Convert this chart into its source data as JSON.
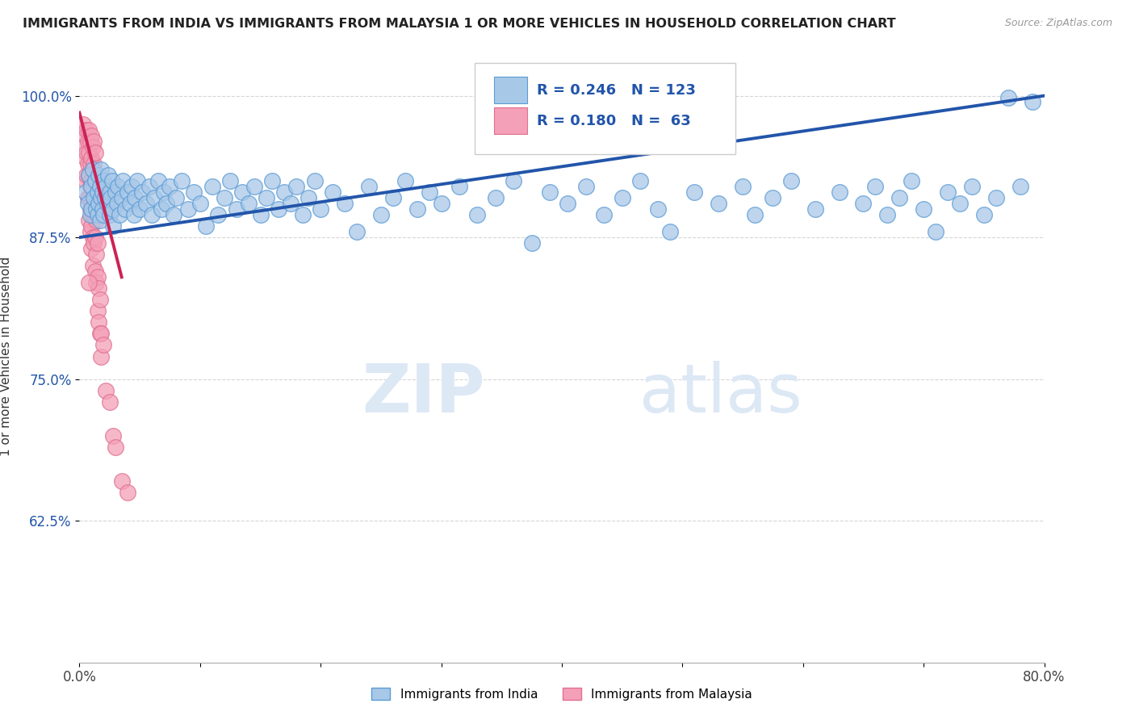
{
  "title": "IMMIGRANTS FROM INDIA VS IMMIGRANTS FROM MALAYSIA 1 OR MORE VEHICLES IN HOUSEHOLD CORRELATION CHART",
  "source": "Source: ZipAtlas.com",
  "ylabel": "1 or more Vehicles in Household",
  "x_min": 0.0,
  "x_max": 0.8,
  "y_min": 0.5,
  "y_max": 1.04,
  "y_ticks": [
    0.625,
    0.75,
    0.875,
    1.0
  ],
  "y_tick_labels": [
    "62.5%",
    "75.0%",
    "87.5%",
    "100.0%"
  ],
  "x_ticks": [
    0.0,
    0.1,
    0.2,
    0.3,
    0.4,
    0.5,
    0.6,
    0.7,
    0.8
  ],
  "x_tick_labels": [
    "0.0%",
    "",
    "",
    "",
    "",
    "",
    "",
    "",
    "80.0%"
  ],
  "india_color": "#A8C8E8",
  "malaysia_color": "#F4A0B8",
  "india_edge_color": "#5B9BD5",
  "malaysia_edge_color": "#E07090",
  "india_trend_color": "#2255AA",
  "malaysia_trend_color": "#CC2255",
  "india_R": 0.246,
  "india_N": 123,
  "malaysia_R": 0.18,
  "malaysia_N": 63,
  "legend_india": "Immigrants from India",
  "legend_malaysia": "Immigrants from Malaysia",
  "watermark_zip": "ZIP",
  "watermark_atlas": "atlas",
  "india_trend_x": [
    0.0,
    0.8
  ],
  "india_trend_y": [
    0.875,
    1.0
  ],
  "malaysia_trend_x": [
    0.0,
    0.035
  ],
  "malaysia_trend_y": [
    0.985,
    0.84
  ],
  "india_scatter": [
    [
      0.005,
      0.915
    ],
    [
      0.007,
      0.905
    ],
    [
      0.008,
      0.93
    ],
    [
      0.009,
      0.895
    ],
    [
      0.01,
      0.92
    ],
    [
      0.01,
      0.9
    ],
    [
      0.011,
      0.935
    ],
    [
      0.012,
      0.91
    ],
    [
      0.013,
      0.925
    ],
    [
      0.014,
      0.9
    ],
    [
      0.015,
      0.915
    ],
    [
      0.015,
      0.895
    ],
    [
      0.016,
      0.93
    ],
    [
      0.016,
      0.905
    ],
    [
      0.017,
      0.92
    ],
    [
      0.017,
      0.89
    ],
    [
      0.018,
      0.91
    ],
    [
      0.018,
      0.935
    ],
    [
      0.019,
      0.9
    ],
    [
      0.019,
      0.915
    ],
    [
      0.02,
      0.925
    ],
    [
      0.02,
      0.895
    ],
    [
      0.021,
      0.91
    ],
    [
      0.022,
      0.92
    ],
    [
      0.023,
      0.905
    ],
    [
      0.024,
      0.93
    ],
    [
      0.025,
      0.915
    ],
    [
      0.025,
      0.895
    ],
    [
      0.026,
      0.91
    ],
    [
      0.027,
      0.925
    ],
    [
      0.028,
      0.9
    ],
    [
      0.028,
      0.885
    ],
    [
      0.03,
      0.915
    ],
    [
      0.031,
      0.905
    ],
    [
      0.032,
      0.92
    ],
    [
      0.033,
      0.895
    ],
    [
      0.035,
      0.91
    ],
    [
      0.036,
      0.925
    ],
    [
      0.038,
      0.9
    ],
    [
      0.04,
      0.915
    ],
    [
      0.042,
      0.905
    ],
    [
      0.043,
      0.92
    ],
    [
      0.045,
      0.895
    ],
    [
      0.046,
      0.91
    ],
    [
      0.048,
      0.925
    ],
    [
      0.05,
      0.9
    ],
    [
      0.052,
      0.915
    ],
    [
      0.055,
      0.905
    ],
    [
      0.058,
      0.92
    ],
    [
      0.06,
      0.895
    ],
    [
      0.062,
      0.91
    ],
    [
      0.065,
      0.925
    ],
    [
      0.068,
      0.9
    ],
    [
      0.07,
      0.915
    ],
    [
      0.072,
      0.905
    ],
    [
      0.075,
      0.92
    ],
    [
      0.078,
      0.895
    ],
    [
      0.08,
      0.91
    ],
    [
      0.085,
      0.925
    ],
    [
      0.09,
      0.9
    ],
    [
      0.095,
      0.915
    ],
    [
      0.1,
      0.905
    ],
    [
      0.105,
      0.885
    ],
    [
      0.11,
      0.92
    ],
    [
      0.115,
      0.895
    ],
    [
      0.12,
      0.91
    ],
    [
      0.125,
      0.925
    ],
    [
      0.13,
      0.9
    ],
    [
      0.135,
      0.915
    ],
    [
      0.14,
      0.905
    ],
    [
      0.145,
      0.92
    ],
    [
      0.15,
      0.895
    ],
    [
      0.155,
      0.91
    ],
    [
      0.16,
      0.925
    ],
    [
      0.165,
      0.9
    ],
    [
      0.17,
      0.915
    ],
    [
      0.175,
      0.905
    ],
    [
      0.18,
      0.92
    ],
    [
      0.185,
      0.895
    ],
    [
      0.19,
      0.91
    ],
    [
      0.195,
      0.925
    ],
    [
      0.2,
      0.9
    ],
    [
      0.21,
      0.915
    ],
    [
      0.22,
      0.905
    ],
    [
      0.23,
      0.88
    ],
    [
      0.24,
      0.92
    ],
    [
      0.25,
      0.895
    ],
    [
      0.26,
      0.91
    ],
    [
      0.27,
      0.925
    ],
    [
      0.28,
      0.9
    ],
    [
      0.29,
      0.915
    ],
    [
      0.3,
      0.905
    ],
    [
      0.315,
      0.92
    ],
    [
      0.33,
      0.895
    ],
    [
      0.345,
      0.91
    ],
    [
      0.36,
      0.925
    ],
    [
      0.375,
      0.87
    ],
    [
      0.39,
      0.915
    ],
    [
      0.405,
      0.905
    ],
    [
      0.42,
      0.92
    ],
    [
      0.435,
      0.895
    ],
    [
      0.45,
      0.91
    ],
    [
      0.465,
      0.925
    ],
    [
      0.48,
      0.9
    ],
    [
      0.49,
      0.88
    ],
    [
      0.51,
      0.915
    ],
    [
      0.53,
      0.905
    ],
    [
      0.55,
      0.92
    ],
    [
      0.56,
      0.895
    ],
    [
      0.575,
      0.91
    ],
    [
      0.59,
      0.925
    ],
    [
      0.61,
      0.9
    ],
    [
      0.63,
      0.915
    ],
    [
      0.65,
      0.905
    ],
    [
      0.66,
      0.92
    ],
    [
      0.67,
      0.895
    ],
    [
      0.68,
      0.91
    ],
    [
      0.69,
      0.925
    ],
    [
      0.7,
      0.9
    ],
    [
      0.71,
      0.88
    ],
    [
      0.72,
      0.915
    ],
    [
      0.73,
      0.905
    ],
    [
      0.74,
      0.92
    ],
    [
      0.75,
      0.895
    ],
    [
      0.76,
      0.91
    ],
    [
      0.77,
      0.998
    ],
    [
      0.78,
      0.92
    ],
    [
      0.79,
      0.995
    ]
  ],
  "malaysia_scatter": [
    [
      0.003,
      0.975
    ],
    [
      0.004,
      0.955
    ],
    [
      0.005,
      0.965
    ],
    [
      0.005,
      0.945
    ],
    [
      0.005,
      0.925
    ],
    [
      0.006,
      0.97
    ],
    [
      0.006,
      0.95
    ],
    [
      0.006,
      0.93
    ],
    [
      0.007,
      0.96
    ],
    [
      0.007,
      0.94
    ],
    [
      0.007,
      0.91
    ],
    [
      0.008,
      0.97
    ],
    [
      0.008,
      0.95
    ],
    [
      0.008,
      0.93
    ],
    [
      0.008,
      0.91
    ],
    [
      0.008,
      0.89
    ],
    [
      0.009,
      0.96
    ],
    [
      0.009,
      0.94
    ],
    [
      0.009,
      0.92
    ],
    [
      0.009,
      0.9
    ],
    [
      0.009,
      0.88
    ],
    [
      0.01,
      0.965
    ],
    [
      0.01,
      0.945
    ],
    [
      0.01,
      0.925
    ],
    [
      0.01,
      0.905
    ],
    [
      0.01,
      0.885
    ],
    [
      0.01,
      0.865
    ],
    [
      0.011,
      0.955
    ],
    [
      0.011,
      0.935
    ],
    [
      0.011,
      0.915
    ],
    [
      0.011,
      0.895
    ],
    [
      0.011,
      0.875
    ],
    [
      0.011,
      0.85
    ],
    [
      0.012,
      0.96
    ],
    [
      0.012,
      0.94
    ],
    [
      0.012,
      0.92
    ],
    [
      0.012,
      0.895
    ],
    [
      0.012,
      0.87
    ],
    [
      0.013,
      0.95
    ],
    [
      0.013,
      0.925
    ],
    [
      0.013,
      0.9
    ],
    [
      0.013,
      0.875
    ],
    [
      0.013,
      0.845
    ],
    [
      0.014,
      0.89
    ],
    [
      0.014,
      0.86
    ],
    [
      0.014,
      0.835
    ],
    [
      0.015,
      0.87
    ],
    [
      0.015,
      0.84
    ],
    [
      0.015,
      0.81
    ],
    [
      0.016,
      0.83
    ],
    [
      0.016,
      0.8
    ],
    [
      0.017,
      0.82
    ],
    [
      0.017,
      0.79
    ],
    [
      0.018,
      0.79
    ],
    [
      0.018,
      0.77
    ],
    [
      0.02,
      0.78
    ],
    [
      0.022,
      0.74
    ],
    [
      0.028,
      0.7
    ],
    [
      0.03,
      0.69
    ],
    [
      0.035,
      0.66
    ],
    [
      0.04,
      0.65
    ],
    [
      0.008,
      0.835
    ],
    [
      0.025,
      0.73
    ]
  ]
}
